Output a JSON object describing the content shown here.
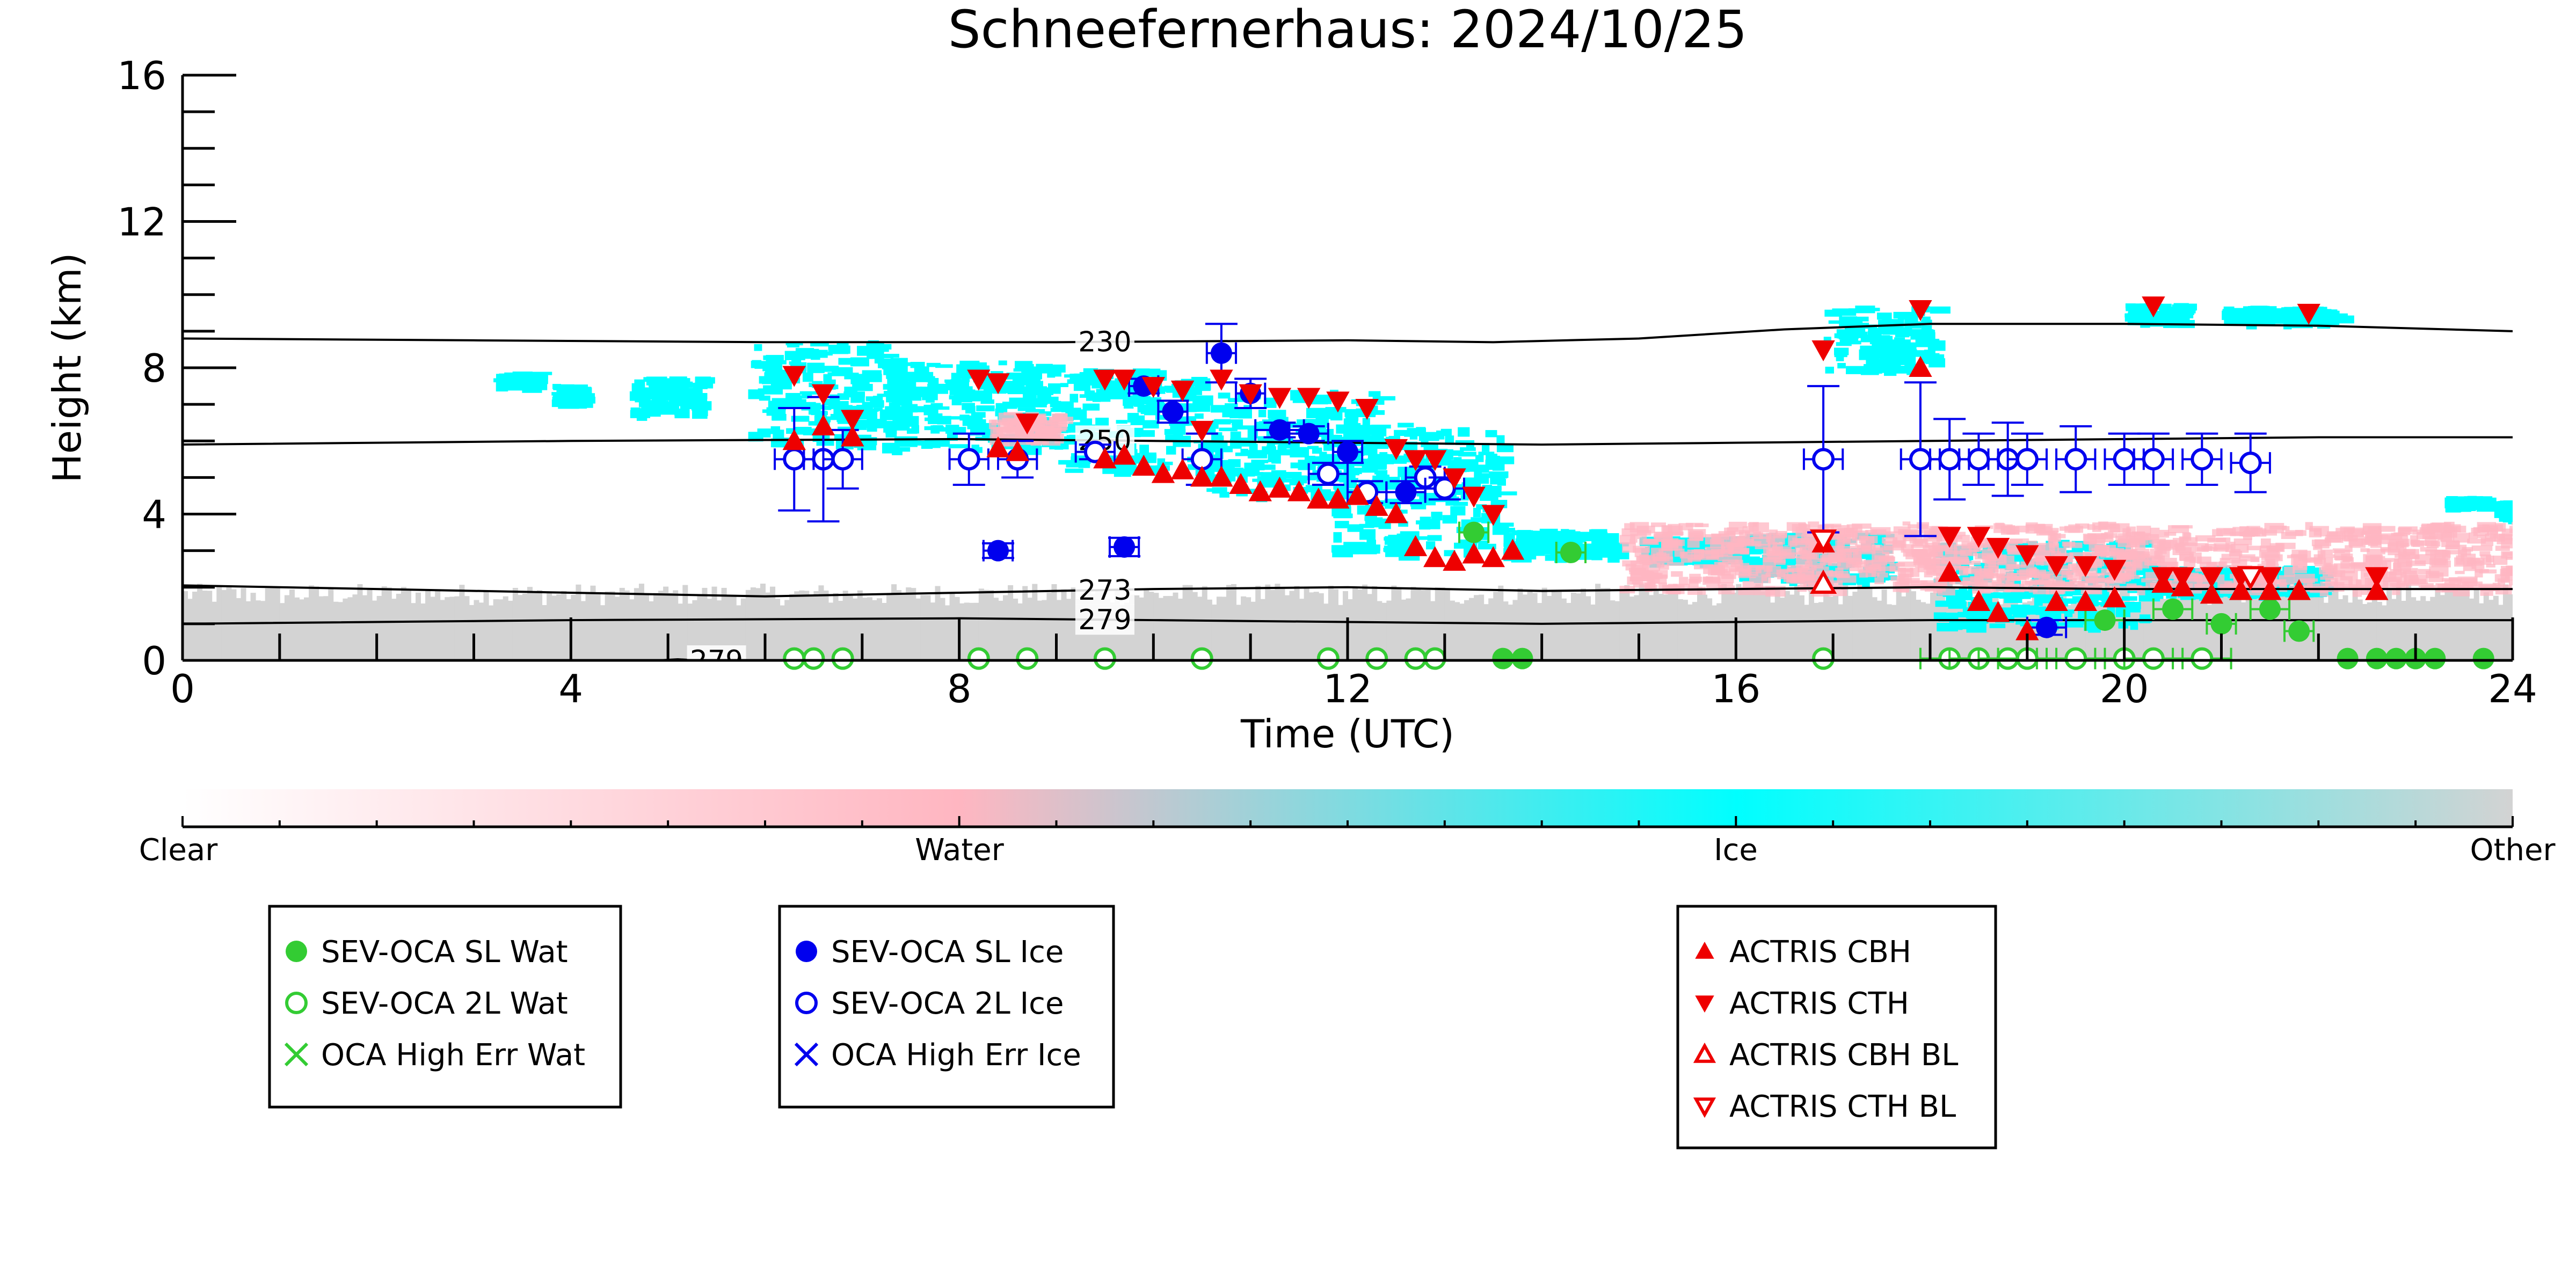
{
  "chart_data": {
    "type": "scatter",
    "title": "Schneefernerhaus: 2024/10/25",
    "xlabel": "Time (UTC)",
    "ylabel": "Height (km)",
    "xlim": [
      0,
      24
    ],
    "ylim": [
      0,
      16
    ],
    "x_ticks": [
      "0",
      "4",
      "8",
      "12",
      "16",
      "20",
      "24"
    ],
    "y_ticks": [
      "0",
      "4",
      "8",
      "12",
      "16"
    ],
    "grid": false,
    "colorbar": {
      "labels": [
        "Clear",
        "Water",
        "Ice",
        "Other"
      ],
      "colors": [
        "#ffffff",
        "#ffb6c1",
        "#00ffff",
        "#d3d3d3"
      ]
    },
    "contours": [
      {
        "label": "230",
        "label_x": 9.5,
        "points": [
          [
            0,
            8.8
          ],
          [
            3,
            8.75
          ],
          [
            6,
            8.7
          ],
          [
            9,
            8.7
          ],
          [
            12,
            8.75
          ],
          [
            13.5,
            8.7
          ],
          [
            15,
            8.8
          ],
          [
            16.5,
            9.05
          ],
          [
            18,
            9.2
          ],
          [
            20,
            9.2
          ],
          [
            22,
            9.15
          ],
          [
            24,
            9.0
          ]
        ]
      },
      {
        "label": "250",
        "label_x": 9.5,
        "points": [
          [
            0,
            5.9
          ],
          [
            4,
            6.0
          ],
          [
            8,
            6.05
          ],
          [
            10,
            6.0
          ],
          [
            12,
            5.95
          ],
          [
            14,
            5.9
          ],
          [
            16,
            5.95
          ],
          [
            18,
            6.0
          ],
          [
            20,
            6.05
          ],
          [
            22,
            6.1
          ],
          [
            24,
            6.1
          ]
        ]
      },
      {
        "label": "273",
        "label_x": 9.5,
        "points": [
          [
            0,
            2.05
          ],
          [
            4,
            1.85
          ],
          [
            6,
            1.75
          ],
          [
            8,
            1.85
          ],
          [
            10,
            1.95
          ],
          [
            12,
            2.0
          ],
          [
            14,
            1.9
          ],
          [
            16,
            1.95
          ],
          [
            18,
            2.0
          ],
          [
            20,
            1.95
          ],
          [
            24,
            1.95
          ]
        ]
      },
      {
        "label": "279",
        "label_x": 9.5,
        "points": [
          [
            0,
            1.0
          ],
          [
            4,
            1.1
          ],
          [
            8,
            1.15
          ],
          [
            10,
            1.1
          ],
          [
            12,
            1.05
          ],
          [
            14,
            1.0
          ],
          [
            16,
            1.05
          ],
          [
            18,
            1.1
          ],
          [
            20,
            1.1
          ],
          [
            24,
            1.1
          ]
        ]
      },
      {
        "label": "279",
        "label_x": 5.5,
        "points": [
          [
            4.9,
            0.0
          ],
          [
            5.1,
            0.03
          ],
          [
            5.3,
            0.0
          ]
        ]
      }
    ],
    "cloud_regions": [
      {
        "type": "ice",
        "x": [
          3.2,
          3.6
        ],
        "y": [
          7.6,
          7.9
        ]
      },
      {
        "type": "ice",
        "x": [
          3.8,
          4.1
        ],
        "y": [
          7.1,
          7.6
        ]
      },
      {
        "type": "ice",
        "x": [
          4.6,
          5.3
        ],
        "y": [
          6.8,
          7.8
        ]
      },
      {
        "type": "ice",
        "x": [
          5.8,
          7.3
        ],
        "y": [
          6.0,
          8.8
        ]
      },
      {
        "type": "ice",
        "x": [
          7.2,
          9.0
        ],
        "y": [
          5.8,
          8.2
        ]
      },
      {
        "type": "ice",
        "x": [
          9.0,
          10.5
        ],
        "y": [
          5.2,
          8.0
        ]
      },
      {
        "type": "ice",
        "x": [
          10.5,
          12.3
        ],
        "y": [
          4.6,
          7.4
        ]
      },
      {
        "type": "ice",
        "x": [
          11.8,
          13.6
        ],
        "y": [
          3.0,
          6.5
        ]
      },
      {
        "type": "ice",
        "x": [
          13.6,
          14.7
        ],
        "y": [
          2.9,
          3.6
        ]
      },
      {
        "type": "ice",
        "x": [
          15.0,
          16.0
        ],
        "y": [
          2.8,
          3.4
        ]
      },
      {
        "type": "ice",
        "x": [
          16.0,
          17.5
        ],
        "y": [
          2.2,
          3.5
        ]
      },
      {
        "type": "ice",
        "x": [
          16.9,
          18.0
        ],
        "y": [
          8.0,
          9.7
        ]
      },
      {
        "type": "ice",
        "x": [
          18.0,
          20.2
        ],
        "y": [
          1.0,
          3.3
        ]
      },
      {
        "type": "ice",
        "x": [
          20.2,
          22.0
        ],
        "y": [
          1.9,
          2.6
        ]
      },
      {
        "type": "ice",
        "x": [
          20.0,
          20.6
        ],
        "y": [
          9.3,
          9.8
        ]
      },
      {
        "type": "ice",
        "x": [
          21.0,
          22.2
        ],
        "y": [
          9.3,
          9.7
        ]
      },
      {
        "type": "ice",
        "x": [
          23.3,
          23.7
        ],
        "y": [
          4.3,
          4.5
        ]
      },
      {
        "type": "ice",
        "x": [
          23.8,
          24.0
        ],
        "y": [
          3.9,
          4.4
        ]
      },
      {
        "type": "water",
        "x": [
          14.8,
          24.0
        ],
        "y": [
          2.0,
          3.8
        ]
      },
      {
        "type": "water",
        "x": [
          8.3,
          9.0
        ],
        "y": [
          6.1,
          6.8
        ]
      }
    ],
    "series": [
      {
        "name": "SEV-OCA SL Wat",
        "marker": "circle-filled",
        "color": "#33cc33",
        "x": [
          13.3,
          14.3,
          13.6,
          13.8,
          19.8,
          20.5,
          21.0,
          21.5,
          21.8,
          22.3,
          22.6,
          22.8,
          23.0,
          23.2,
          23.7
        ],
        "y": [
          3.5,
          2.95,
          0.05,
          0.05,
          1.1,
          1.4,
          1.0,
          1.4,
          0.8,
          0.05,
          0.05,
          0.05,
          0.05,
          0.05,
          0.05
        ],
        "xerr": [
          0.15,
          0.15,
          0,
          0,
          0.2,
          0.2,
          0.15,
          0.2,
          0.15,
          0,
          0,
          0,
          0,
          0,
          0
        ]
      },
      {
        "name": "SEV-OCA 2L Wat",
        "marker": "circle-open",
        "color": "#33cc33",
        "x": [
          6.3,
          6.5,
          6.8,
          8.2,
          8.7,
          9.5,
          10.5,
          11.8,
          12.3,
          12.7,
          12.9,
          16.9,
          18.2,
          18.5,
          18.8,
          19.0,
          19.5,
          20.0,
          20.3,
          20.8
        ],
        "y": [
          0.05,
          0.05,
          0.05,
          0.05,
          0.05,
          0.05,
          0.05,
          0.05,
          0.05,
          0.05,
          0.05,
          0.05,
          0.05,
          0.05,
          0.05,
          0.05,
          0.05,
          0.05,
          0.05,
          0.05
        ],
        "xerr": [
          0,
          0,
          0,
          0,
          0,
          0,
          0,
          0,
          0,
          0,
          0,
          0,
          0.3,
          0.3,
          0.3,
          0.3,
          0.3,
          0.3,
          0.3,
          0.3
        ]
      },
      {
        "name": "OCA High Err Wat",
        "marker": "x",
        "color": "#33cc33",
        "x": [],
        "y": []
      },
      {
        "name": "SEV-OCA SL Ice",
        "marker": "circle-filled",
        "color": "#0000ee",
        "x": [
          8.4,
          9.7,
          9.9,
          10.2,
          10.7,
          11.0,
          11.3,
          11.6,
          12.0,
          12.6,
          19.2
        ],
        "y": [
          3.0,
          3.1,
          7.5,
          6.8,
          8.4,
          7.3,
          6.3,
          6.2,
          5.7,
          4.6,
          0.9
        ],
        "yerr": [
          0.2,
          0.25,
          0.2,
          0.3,
          0.8,
          0.4,
          0.2,
          0.2,
          0.3,
          0.3,
          0.2
        ],
        "xerr": [
          0.15,
          0.15,
          0.15,
          0.15,
          0.15,
          0.15,
          0.25,
          0.2,
          0.15,
          0.2,
          0.2
        ]
      },
      {
        "name": "SEV-OCA 2L Ice",
        "marker": "circle-open",
        "color": "#0000ee",
        "x": [
          6.3,
          6.6,
          6.8,
          8.1,
          8.6,
          9.4,
          10.5,
          11.8,
          12.2,
          12.8,
          13.0,
          16.9,
          17.9,
          18.2,
          18.5,
          18.8,
          19.0,
          19.5,
          20.0,
          20.3,
          20.8,
          21.3
        ],
        "y": [
          5.5,
          5.5,
          5.5,
          5.5,
          5.5,
          5.7,
          5.5,
          5.1,
          4.6,
          5.0,
          4.7,
          5.5,
          5.5,
          5.5,
          5.5,
          5.5,
          5.5,
          5.5,
          5.5,
          5.5,
          5.5,
          5.4
        ],
        "yerr": [
          1.4,
          1.7,
          0.8,
          0.7,
          0.5,
          0.2,
          0.7,
          0.3,
          0.3,
          0.3,
          0.3,
          2.0,
          2.1,
          1.1,
          0.7,
          1.0,
          0.7,
          0.9,
          0.7,
          0.7,
          0.7,
          0.8
        ],
        "xerr": [
          0.2,
          0.2,
          0.2,
          0.2,
          0.2,
          0.2,
          0.2,
          0.2,
          0.2,
          0.2,
          0.2,
          0.2,
          0.2,
          0.2,
          0.2,
          0.2,
          0.2,
          0.2,
          0.2,
          0.2,
          0.2,
          0.2
        ]
      },
      {
        "name": "OCA High Err Ice",
        "marker": "x",
        "color": "#0000ee",
        "x": [],
        "y": []
      },
      {
        "name": "ACTRIS CBH",
        "marker": "triangle-up-filled",
        "color": "#ee0000",
        "x": [
          6.3,
          6.6,
          6.9,
          8.4,
          8.6,
          9.5,
          9.7,
          9.9,
          10.1,
          10.3,
          10.5,
          10.7,
          10.9,
          11.1,
          11.3,
          11.5,
          11.7,
          11.9,
          12.1,
          12.3,
          12.5,
          12.7,
          12.9,
          13.1,
          13.3,
          13.5,
          13.7,
          16.9,
          17.9,
          18.2,
          18.5,
          18.7,
          19.0,
          19.3,
          19.6,
          19.9,
          20.4,
          20.6,
          20.9,
          21.2,
          21.5,
          21.8,
          22.6
        ],
        "y": [
          6.0,
          6.4,
          6.1,
          5.8,
          5.7,
          5.5,
          5.6,
          5.3,
          5.1,
          5.2,
          5.0,
          5.0,
          4.8,
          4.6,
          4.7,
          4.6,
          4.4,
          4.4,
          4.5,
          4.2,
          4.0,
          3.1,
          2.8,
          2.7,
          2.9,
          2.8,
          3.0,
          3.2,
          8.0,
          2.4,
          1.6,
          1.3,
          0.8,
          1.6,
          1.6,
          1.7,
          2.1,
          2.0,
          1.8,
          1.9,
          1.9,
          1.9,
          1.9
        ]
      },
      {
        "name": "ACTRIS CTH",
        "marker": "triangle-down-filled",
        "color": "#ee0000",
        "x": [
          6.3,
          6.6,
          6.9,
          8.2,
          8.4,
          8.7,
          9.5,
          9.7,
          10.0,
          10.3,
          10.5,
          10.7,
          11.0,
          11.3,
          11.6,
          11.9,
          12.2,
          12.5,
          12.7,
          12.9,
          13.1,
          13.3,
          13.5,
          16.9,
          17.9,
          18.2,
          18.5,
          18.7,
          19.0,
          19.3,
          19.6,
          19.9,
          20.3,
          20.4,
          20.6,
          20.9,
          21.2,
          21.5,
          21.9,
          22.6
        ],
        "y": [
          7.8,
          7.3,
          6.6,
          7.7,
          7.6,
          6.5,
          7.7,
          7.7,
          7.5,
          7.4,
          6.3,
          7.7,
          7.3,
          7.2,
          7.2,
          7.1,
          6.9,
          5.8,
          5.5,
          5.5,
          5.0,
          4.5,
          4.0,
          8.5,
          9.6,
          3.4,
          3.4,
          3.1,
          2.9,
          2.6,
          2.6,
          2.5,
          9.7,
          2.3,
          2.3,
          2.3,
          2.3,
          2.3,
          9.5,
          2.3
        ]
      },
      {
        "name": "ACTRIS CBH BL",
        "marker": "triangle-up-open",
        "color": "#ee0000",
        "x": [
          16.9
        ],
        "y": [
          2.1
        ]
      },
      {
        "name": "ACTRIS CTH BL",
        "marker": "triangle-down-open",
        "color": "#ee0000",
        "x": [
          16.9,
          21.3
        ],
        "y": [
          3.3,
          2.3
        ]
      }
    ]
  }
}
